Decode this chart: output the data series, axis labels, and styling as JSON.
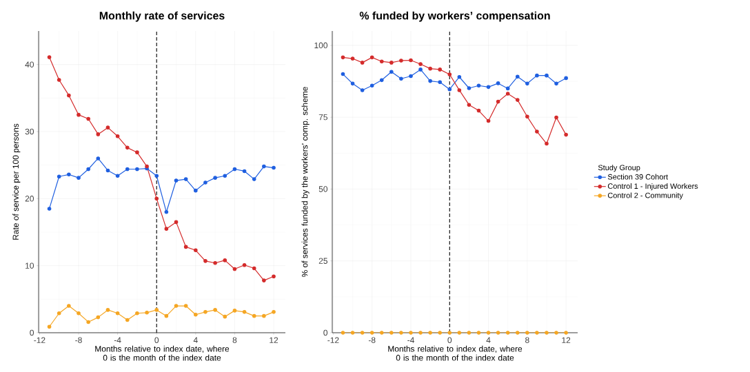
{
  "chart_data": [
    {
      "type": "line",
      "title": "Monthly rate of services",
      "xlabel": "Months relative to index date, where 0 is the month of the index date",
      "ylabel": "Rate of service per 100 persons",
      "x": [
        -11,
        -10,
        -9,
        -8,
        -7,
        -6,
        -5,
        -4,
        -3,
        -2,
        -1,
        0,
        1,
        2,
        3,
        4,
        5,
        6,
        7,
        8,
        9,
        10,
        11,
        12
      ],
      "series": [
        {
          "name": "Section 39 Cohort",
          "color": "#1f5fe0",
          "values": [
            18.5,
            23.3,
            23.6,
            23.1,
            24.4,
            26.0,
            24.2,
            23.4,
            24.4,
            24.4,
            24.5,
            23.4,
            18.0,
            22.7,
            22.9,
            21.2,
            22.4,
            23.1,
            23.4,
            24.4,
            24.1,
            22.9,
            24.8,
            24.6
          ]
        },
        {
          "name": "Control 1 - Injured Workers",
          "color": "#d42b2b",
          "values": [
            41.1,
            37.7,
            35.4,
            32.5,
            31.9,
            29.6,
            30.6,
            29.3,
            27.6,
            26.9,
            24.8,
            20.0,
            15.5,
            16.5,
            12.8,
            12.3,
            10.7,
            10.4,
            10.8,
            9.5,
            10.1,
            9.6,
            7.8,
            8.4
          ]
        },
        {
          "name": "Control 2 - Community",
          "color": "#f5a623",
          "values": [
            0.9,
            2.9,
            4.0,
            2.9,
            1.6,
            2.3,
            3.4,
            2.9,
            1.9,
            2.9,
            3.0,
            3.4,
            2.5,
            4.0,
            4.0,
            2.7,
            3.1,
            3.4,
            2.4,
            3.3,
            3.1,
            2.5,
            2.5,
            3.1
          ]
        }
      ],
      "xlim": [
        -12.1,
        13.2
      ],
      "ylim": [
        0,
        45
      ],
      "xticks": [
        -12,
        -8,
        -4,
        0,
        4,
        8,
        12
      ],
      "yticks": [
        0,
        10,
        20,
        30,
        40
      ],
      "ref_lines": [
        {
          "axis": "x",
          "value": 0,
          "color": "#000000",
          "line_style": "dashed"
        }
      ],
      "grid": true,
      "marker": "circle",
      "line_style": "solid",
      "legend": "right",
      "legend_title": "Study Group"
    },
    {
      "type": "line",
      "title": "% funded by workers’ compensation",
      "xlabel": "Months relative to index date, where 0 is the month of the index date",
      "ylabel": "% of services funded by the workers’ comp. scheme",
      "x": [
        -11,
        -10,
        -9,
        -8,
        -7,
        -6,
        -5,
        -4,
        -3,
        -2,
        -1,
        0,
        1,
        2,
        3,
        4,
        5,
        6,
        7,
        8,
        9,
        10,
        11,
        12
      ],
      "series": [
        {
          "color": "#1f5fe0",
          "values": [
            90.0,
            86.7,
            84.4,
            86.0,
            87.9,
            90.8,
            88.4,
            89.3,
            91.6,
            87.6,
            87.2,
            84.7,
            89.0,
            85.1,
            86.0,
            85.5,
            86.8,
            85.0,
            89.1,
            86.7,
            89.5,
            89.5,
            86.7,
            88.6
          ]
        },
        {
          "color": "#d42b2b",
          "values": [
            95.8,
            95.4,
            94.0,
            95.8,
            94.4,
            94.0,
            94.7,
            94.8,
            93.5,
            91.9,
            91.6,
            89.9,
            84.4,
            79.3,
            77.3,
            73.7,
            80.4,
            83.2,
            81.0,
            75.2,
            70.0,
            65.8,
            74.9,
            68.9
          ]
        },
        {
          "color": "#f5a623",
          "values": [
            0,
            0,
            0,
            0,
            0,
            0,
            0,
            0,
            0,
            0,
            0,
            0,
            0,
            0,
            0,
            0,
            0,
            0,
            0,
            0,
            0,
            0,
            0,
            0
          ]
        }
      ],
      "xlim": [
        -12.1,
        13.2
      ],
      "ylim": [
        0,
        105
      ],
      "xticks": [
        -12,
        -8,
        -4,
        0,
        4,
        8,
        12
      ],
      "yticks": [
        0,
        25,
        50,
        75,
        100
      ],
      "ref_lines": [
        {
          "axis": "x",
          "value": 0,
          "color": "#000000",
          "line_style": "dashed"
        }
      ],
      "grid": true,
      "marker": "circle",
      "line_style": "solid"
    }
  ]
}
